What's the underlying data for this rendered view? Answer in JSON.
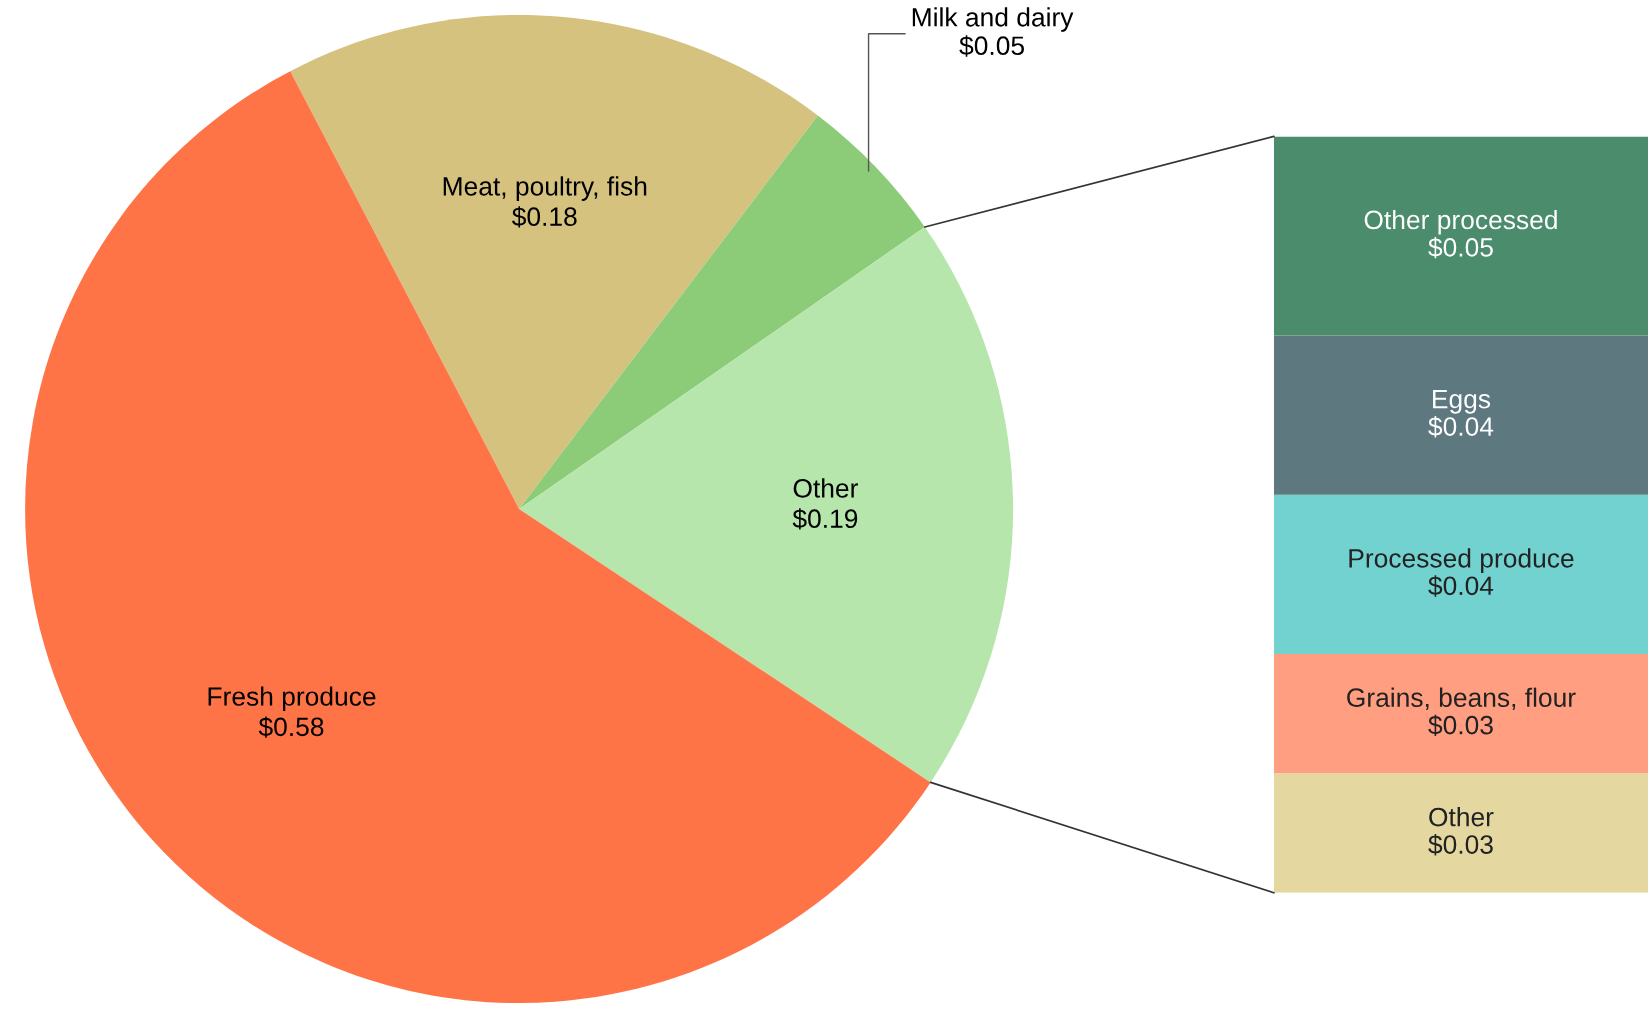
{
  "chart_data": [
    {
      "type": "pie",
      "categories": [
        "Meat, poultry, fish",
        "Milk and dairy",
        "Other",
        "Fresh produce"
      ],
      "values": [
        0.18,
        0.05,
        0.19,
        0.58
      ],
      "value_labels": [
        "$0.18",
        "$0.05",
        "$0.19",
        "$0.58"
      ],
      "colors": [
        "#d4c27e",
        "#8ccc78",
        "#b6e6ac",
        "#ff7446"
      ],
      "legend": false
    },
    {
      "type": "bar",
      "stacked": true,
      "categories": [
        null
      ],
      "series": [
        {
          "name": "Other",
          "color": "#e4d8a0",
          "values": [
            0.03
          ],
          "value_labels": [
            "$0.03"
          ]
        },
        {
          "name": "Grains, beans, flour",
          "color": "#ff9e80",
          "values": [
            0.03
          ],
          "value_labels": [
            "$0.03"
          ]
        },
        {
          "name": "Processed produce",
          "color": "#72d2d0",
          "values": [
            0.04
          ],
          "value_labels": [
            "$0.04"
          ]
        },
        {
          "name": "Eggs",
          "color": "#5e7880",
          "values": [
            0.04
          ],
          "value_labels": [
            "$0.04"
          ]
        },
        {
          "name": "Other processed",
          "color": "#4a8c6c",
          "values": [
            0.05
          ],
          "value_labels": [
            "$0.05"
          ]
        }
      ],
      "tick_labels": false,
      "legend": false
    }
  ]
}
